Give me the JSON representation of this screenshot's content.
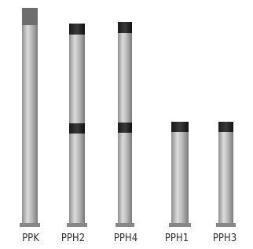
{
  "products": [
    {
      "label": "PPK"
    },
    {
      "label": "PPH2"
    },
    {
      "label": "PPH4"
    },
    {
      "label": "PPH1"
    },
    {
      "label": "PPH3"
    }
  ]
}
